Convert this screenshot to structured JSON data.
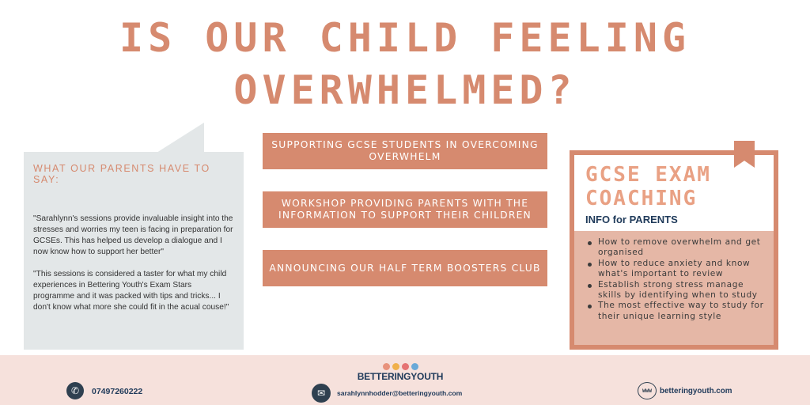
{
  "headline": {
    "line1": "IS OUR CHILD FEELING",
    "line2": "OVERWHELMED?"
  },
  "testimonials": {
    "heading": "WHAT OUR PARENTS HAVE TO SAY:",
    "quotes": [
      "\"Sarahlynn's sessions provide invaluable insight into the stresses and worries my teen is facing in preparation for GCSEs. This has helped us develop a dialogue and I now know how to support her better\"",
      "\"This sessions is considered a taster for what my child experiences in Bettering Youth's Exam Stars programme and it was packed with tips and tricks... I don't know what more she could fit in the acual couse!\""
    ]
  },
  "banners": [
    "SUPPORTING GCSE STUDENTS IN OVERCOMING OVERWHELM",
    "WORKSHOP PROVIDING PARENTS WITH THE INFORMATION TO SUPPORT THEIR CHILDREN",
    "ANNOUNCING OUR HALF TERM BOOSTERS CLUB"
  ],
  "card": {
    "title_line1": "GCSE EXAM",
    "title_line2": "COACHING",
    "subtitle": "INFO for PARENTS",
    "bullets": [
      "How to remove overwhelm and get organised",
      "How to reduce anxiety and know what's important to review",
      "Establish strong stress manage skills by identifying when to study",
      "The most effective way to study for their unique learning style"
    ]
  },
  "footer": {
    "phone": "07497260222",
    "logo_text": "BETTERINGYOUTH",
    "email": "sarahlynnhodder@betteringyouth.com",
    "web_icon_label": "WWW",
    "website": "betteringyouth.com"
  },
  "icons": {
    "phone": "phone-icon",
    "email": "mail-icon",
    "web": "globe-icon"
  },
  "colors": {
    "accent": "#d68a6f",
    "card_fill": "#e5b7a6",
    "quote_bg": "#e3e7e8",
    "footer_bg": "#f6e1dc",
    "navy": "#1f3a5a",
    "logo_dots": [
      "#e8927c",
      "#f0b04a",
      "#e57373",
      "#6aa9d8"
    ]
  }
}
